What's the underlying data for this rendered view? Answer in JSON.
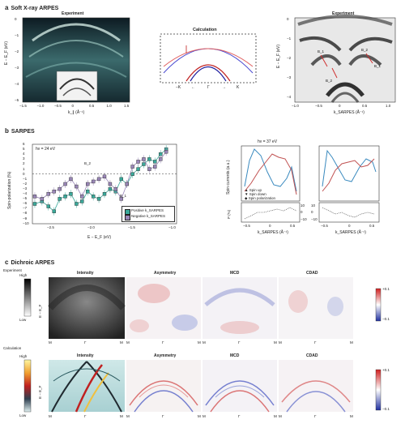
{
  "panel_a": {
    "letter": "a",
    "title": "Soft X-ray ARPES",
    "left": {
      "title": "Experiment",
      "ylabel": "E − E_F (eV)",
      "xlabel": "k_∥ (Å⁻¹)",
      "yticks": [
        "0",
        "−1",
        "−2",
        "−3",
        "−4",
        "−5"
      ],
      "xticks": [
        "−1.5",
        "−1.0",
        "−0.5",
        "0",
        "0.5",
        "1.0",
        "1.5"
      ]
    },
    "middle": {
      "title": "Calculation",
      "labels": [
        "−K",
        "←",
        "Γ",
        "→",
        "K"
      ]
    },
    "right": {
      "title": "Experiment",
      "ylabel": "E − E_F (eV)",
      "xlabel": "k_SARPES (Å⁻¹)",
      "yticks": [
        "0",
        "−1",
        "−2",
        "−3",
        "−4"
      ],
      "xticks": [
        "−1.0",
        "−0.5",
        "0",
        "0.5",
        "1.0"
      ],
      "annotations": [
        "B_1",
        "B_2",
        "B_2",
        "B_1"
      ]
    }
  },
  "panel_b": {
    "letter": "b",
    "title": "SARPES",
    "main": {
      "hv": "hν = 24 eV",
      "ylabel": "Spin-polarization (%)",
      "xlabel": "E − E_F (eV)",
      "legend": [
        "Positive k_SARPES",
        "Negative k_SARPES"
      ],
      "annotations": [
        "B_2",
        "B_1"
      ],
      "yticks": [
        "6",
        "5",
        "4",
        "3",
        "2",
        "1",
        "0",
        "−1",
        "−2",
        "−3",
        "−4",
        "−5",
        "−6",
        "−7",
        "−8",
        "−9",
        "−10"
      ],
      "xticks": [
        "−2.5",
        "−2.0",
        "−1.5",
        "−1.0"
      ]
    },
    "right": {
      "hv": "hν = 37 eV",
      "ylabel_top": "Spin currents (a.u.)",
      "ylabel_bottom": "P (%)",
      "legend": [
        "Spin up",
        "Spin down",
        "Spin polarization"
      ],
      "xlabel": "k_SARPES (Å⁻¹)",
      "xticks": [
        "−0.5",
        "0",
        "0.5"
      ],
      "pticks": [
        "10",
        "0",
        "−10"
      ]
    }
  },
  "panel_c": {
    "letter": "c",
    "title": "Dichroic ARPES",
    "experiment_label": "Experiment",
    "calculation_label": "Calculation",
    "colorbar_high": "High",
    "colorbar_low": "Low",
    "diverging_top": "+0.1",
    "diverging_bottom": "−0.1",
    "ylabel": "E − E_F",
    "columns": [
      "Intensity",
      "Asymmetry",
      "MCD",
      "CDAD"
    ],
    "xlabels": [
      "M",
      "Γ",
      "M"
    ]
  },
  "chart_data": [
    {
      "type": "scatter",
      "title": "",
      "xlabel": "E − E_F (eV)",
      "ylabel": "Spin-polarization (%)",
      "xlim": [
        -2.7,
        -0.9
      ],
      "ylim": [
        -10,
        6
      ],
      "series": [
        {
          "name": "Positive k_SARPES",
          "color": "#3aa99a",
          "x": [
            -2.67,
            -2.58,
            -2.5,
            -2.43,
            -2.36,
            -2.29,
            -2.22,
            -2.15,
            -2.08,
            -2.01,
            -1.94,
            -1.87,
            -1.8,
            -1.73,
            -1.66,
            -1.59,
            -1.52,
            -1.45,
            -1.38,
            -1.31,
            -1.24,
            -1.17,
            -1.1,
            -1.03
          ],
          "y": [
            -6,
            -5.5,
            -6.5,
            -7.5,
            -5,
            -4.5,
            -4,
            -6,
            -5.5,
            -3.5,
            -4.5,
            -5,
            -4,
            -3,
            -3.5,
            -1,
            -2,
            0,
            1,
            2,
            3,
            2.5,
            4,
            5
          ]
        },
        {
          "name": "Negative k_SARPES",
          "color": "#9a87b8",
          "x": [
            -2.67,
            -2.58,
            -2.5,
            -2.43,
            -2.36,
            -2.29,
            -2.22,
            -2.15,
            -2.08,
            -2.01,
            -1.94,
            -1.87,
            -1.8,
            -1.73,
            -1.66,
            -1.59,
            -1.52,
            -1.45,
            -1.38,
            -1.31,
            -1.24,
            -1.17,
            -1.1,
            -1.03
          ],
          "y": [
            -4.5,
            -5,
            -4,
            -3.5,
            -3,
            -2,
            -1,
            -2.5,
            -4.5,
            -2,
            -1.5,
            -1,
            -0.5,
            -2,
            -3,
            -5,
            -2,
            1.5,
            2.5,
            3,
            1,
            1.5,
            3,
            4.5
          ]
        }
      ]
    }
  ]
}
